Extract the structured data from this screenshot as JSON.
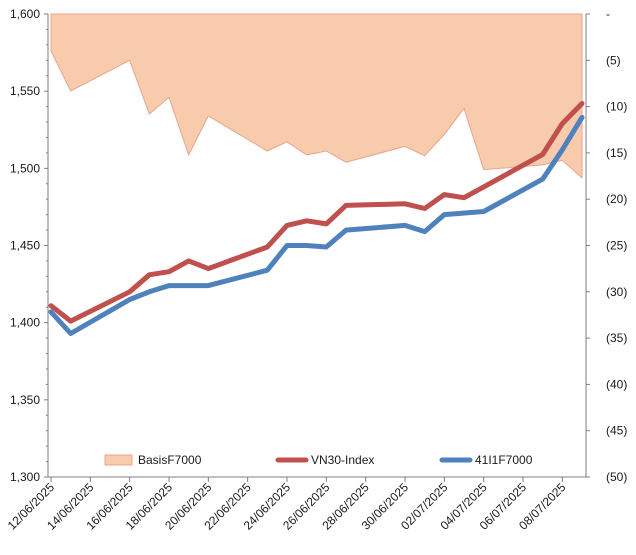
{
  "chart_data": {
    "type": "line",
    "title": "",
    "x": [
      "12/06/2025",
      "13/06/2025",
      "16/06/2025",
      "17/06/2025",
      "18/06/2025",
      "19/06/2025",
      "20/06/2025",
      "23/06/2025",
      "24/06/2025",
      "25/06/2025",
      "26/06/2025",
      "27/06/2025",
      "30/06/2025",
      "01/07/2025",
      "02/07/2025",
      "03/07/2025",
      "04/07/2025",
      "07/07/2025",
      "08/07/2025",
      "09/07/2025"
    ],
    "x_tick_labels": [
      "12/06/2025",
      "14/06/2025",
      "16/06/2025",
      "18/06/2025",
      "20/06/2025",
      "22/06/2025",
      "24/06/2025",
      "26/06/2025",
      "28/06/2025",
      "30/06/2025",
      "02/07/2025",
      "04/07/2025",
      "06/07/2025",
      "08/07/2025"
    ],
    "x_range": [
      "12/06/2025",
      "09/07/2025"
    ],
    "y_left": {
      "min": 1300,
      "max": 1600,
      "step": 50,
      "tick_labels": [
        "1,300",
        "1,350",
        "1,400",
        "1,450",
        "1,500",
        "1,550",
        "1,600"
      ]
    },
    "y_right": {
      "min": 0,
      "max": 50,
      "step": 5,
      "reversed": true,
      "tick_labels": [
        "-",
        "(5)",
        "(10)",
        "(15)",
        "(20)",
        "(25)",
        "(30)",
        "(35)",
        "(40)",
        "(45)",
        "(50)"
      ]
    },
    "grid": false,
    "legend_position": "bottom",
    "series": [
      {
        "name": "BasisF7000",
        "type": "area",
        "axis": "right",
        "color": "#f8cbad",
        "edge_color": "#e8a48c",
        "points": [
          {
            "date": "12/06/2025",
            "value": -4.0
          },
          {
            "date": "13/06/2025",
            "value": -8.3
          },
          {
            "date": "16/06/2025",
            "value": -5.0
          },
          {
            "date": "17/06/2025",
            "value": -10.8
          },
          {
            "date": "18/06/2025",
            "value": -9.0
          },
          {
            "date": "19/06/2025",
            "value": -15.2
          },
          {
            "date": "20/06/2025",
            "value": -11.0
          },
          {
            "date": "23/06/2025",
            "value": -14.8
          },
          {
            "date": "24/06/2025",
            "value": -13.8
          },
          {
            "date": "25/06/2025",
            "value": -15.2
          },
          {
            "date": "26/06/2025",
            "value": -14.8
          },
          {
            "date": "27/06/2025",
            "value": -16.0
          },
          {
            "date": "30/06/2025",
            "value": -14.3
          },
          {
            "date": "01/07/2025",
            "value": -15.3
          },
          {
            "date": "02/07/2025",
            "value": -13.0
          },
          {
            "date": "03/07/2025",
            "value": -10.2
          },
          {
            "date": "04/07/2025",
            "value": -16.8
          },
          {
            "date": "07/07/2025",
            "value": -16.3
          },
          {
            "date": "08/07/2025",
            "value": -15.8
          },
          {
            "date": "09/07/2025",
            "value": -17.7
          }
        ]
      },
      {
        "name": "VN30-Index",
        "type": "line",
        "axis": "left",
        "color": "#c0504d",
        "points": [
          {
            "date": "12/06/2025",
            "value": 1411
          },
          {
            "date": "13/06/2025",
            "value": 1401
          },
          {
            "date": "16/06/2025",
            "value": 1420
          },
          {
            "date": "17/06/2025",
            "value": 1431
          },
          {
            "date": "18/06/2025",
            "value": 1433
          },
          {
            "date": "19/06/2025",
            "value": 1440
          },
          {
            "date": "20/06/2025",
            "value": 1435
          },
          {
            "date": "23/06/2025",
            "value": 1449
          },
          {
            "date": "24/06/2025",
            "value": 1463
          },
          {
            "date": "25/06/2025",
            "value": 1466
          },
          {
            "date": "26/06/2025",
            "value": 1464
          },
          {
            "date": "27/06/2025",
            "value": 1476
          },
          {
            "date": "30/06/2025",
            "value": 1477
          },
          {
            "date": "01/07/2025",
            "value": 1474
          },
          {
            "date": "02/07/2025",
            "value": 1483
          },
          {
            "date": "03/07/2025",
            "value": 1481
          },
          {
            "date": "04/07/2025",
            "value": 1488
          },
          {
            "date": "07/07/2025",
            "value": 1509
          },
          {
            "date": "08/07/2025",
            "value": 1529
          },
          {
            "date": "09/07/2025",
            "value": 1542
          }
        ]
      },
      {
        "name": "41I1F7000",
        "type": "line",
        "axis": "left",
        "color": "#4f81bd",
        "points": [
          {
            "date": "12/06/2025",
            "value": 1407
          },
          {
            "date": "13/06/2025",
            "value": 1393
          },
          {
            "date": "16/06/2025",
            "value": 1415
          },
          {
            "date": "17/06/2025",
            "value": 1420
          },
          {
            "date": "18/06/2025",
            "value": 1424
          },
          {
            "date": "20/06/2025",
            "value": 1424
          },
          {
            "date": "23/06/2025",
            "value": 1434
          },
          {
            "date": "24/06/2025",
            "value": 1450
          },
          {
            "date": "25/06/2025",
            "value": 1450
          },
          {
            "date": "26/06/2025",
            "value": 1449
          },
          {
            "date": "27/06/2025",
            "value": 1460
          },
          {
            "date": "30/06/2025",
            "value": 1463
          },
          {
            "date": "01/07/2025",
            "value": 1459
          },
          {
            "date": "02/07/2025",
            "value": 1470
          },
          {
            "date": "04/07/2025",
            "value": 1472
          },
          {
            "date": "07/07/2025",
            "value": 1493
          },
          {
            "date": "08/07/2025",
            "value": 1512
          },
          {
            "date": "09/07/2025",
            "value": 1533
          }
        ]
      }
    ]
  }
}
